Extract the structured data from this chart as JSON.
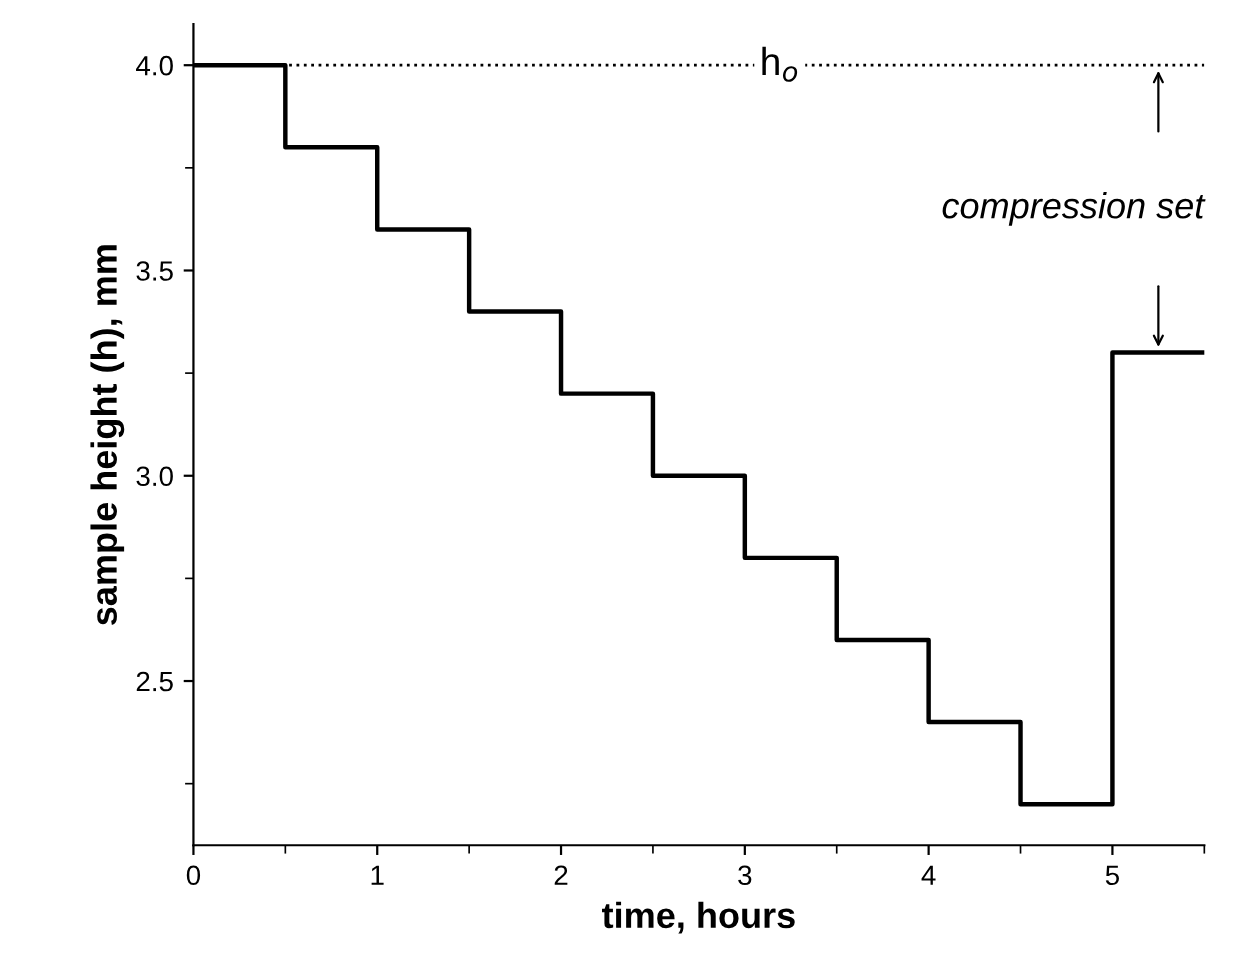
{
  "chart_data": {
    "type": "step",
    "xlabel": "time, hours",
    "ylabel": "sample height (h), mm",
    "x": [
      0,
      0.5,
      1,
      1.5,
      2,
      2.5,
      3,
      3.5,
      4,
      4.5,
      5,
      5.5
    ],
    "series": [
      {
        "color": "#000000",
        "values": [
          4.0,
          3.8,
          3.6,
          3.4,
          3.2,
          3.0,
          2.8,
          2.6,
          2.4,
          2.2,
          3.3,
          3.3
        ]
      }
    ],
    "xlim": [
      0,
      5.5
    ],
    "xticks": [
      0,
      1,
      2,
      3,
      4,
      5
    ],
    "ylim": [
      2.1,
      4.1
    ],
    "yticks": [
      {
        "value": 2.5,
        "label": "2.5"
      },
      {
        "value": 3.0,
        "label": "3.0"
      },
      {
        "value": 3.5,
        "label": "3.5"
      },
      {
        "value": 4.0,
        "label": "4.0"
      }
    ],
    "ref_lines": [
      {
        "axis": "y",
        "value": 4.0,
        "label": "h$_{o}$",
        "color": "#000000",
        "line_style": "dotted"
      }
    ],
    "annotations": [
      "compression set"
    ],
    "grid": false,
    "legend": false,
    "marker": "none",
    "line_style": "solid"
  }
}
